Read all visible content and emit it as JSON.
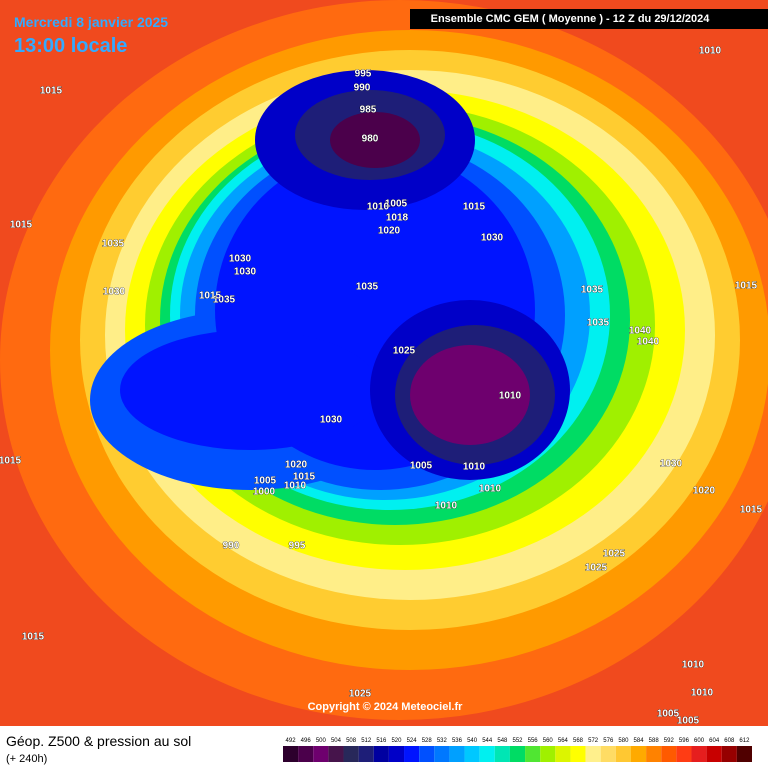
{
  "header": {
    "date": "Mercredi 8 janvier 2025",
    "time": "13:00 locale",
    "model": "Ensemble CMC GEM  ( Moyenne )  -  12 Z du 29/12/2024"
  },
  "footer": {
    "title": "Géop. Z500 & pression au sol",
    "lead": "(+ 240h)",
    "copyright": "Copyright © 2024 Meteociel.fr"
  },
  "isobar_labels": [
    995,
    990,
    985,
    980,
    1010,
    1015,
    1015,
    1035,
    1030,
    1030,
    1030,
    1035,
    1035,
    1015,
    1005,
    1010,
    1018,
    1015,
    1030,
    1020,
    1025,
    1010,
    1030,
    1035,
    1035,
    1040,
    1040,
    1015,
    1015,
    1020,
    1015,
    1010,
    1005,
    1000,
    990,
    995,
    1005,
    1010,
    1010,
    1010,
    1030,
    1020,
    1015,
    1025,
    1025,
    1015,
    1010,
    1010,
    1025,
    1005,
    1005
  ],
  "colorbar": {
    "values": [
      492,
      496,
      500,
      504,
      508,
      512,
      516,
      520,
      524,
      528,
      532,
      536,
      540,
      544,
      548,
      552,
      556,
      560,
      564,
      568,
      572,
      576,
      580,
      584,
      588,
      592,
      596,
      600,
      604,
      608,
      612
    ],
    "colors": [
      "#2d002d",
      "#4b004b",
      "#6e006e",
      "#46144b",
      "#28285a",
      "#1e1e78",
      "#0000a0",
      "#0000c8",
      "#0014ff",
      "#0050ff",
      "#0078ff",
      "#00a0ff",
      "#00c8ff",
      "#00f0f0",
      "#00e6b4",
      "#00dc64",
      "#50e632",
      "#a0f000",
      "#dcf500",
      "#ffff00",
      "#fff08c",
      "#ffdc64",
      "#ffc832",
      "#ffaa00",
      "#ff8200",
      "#ff5a00",
      "#ff3c14",
      "#e61e1e",
      "#c80000",
      "#960000",
      "#500000"
    ]
  }
}
